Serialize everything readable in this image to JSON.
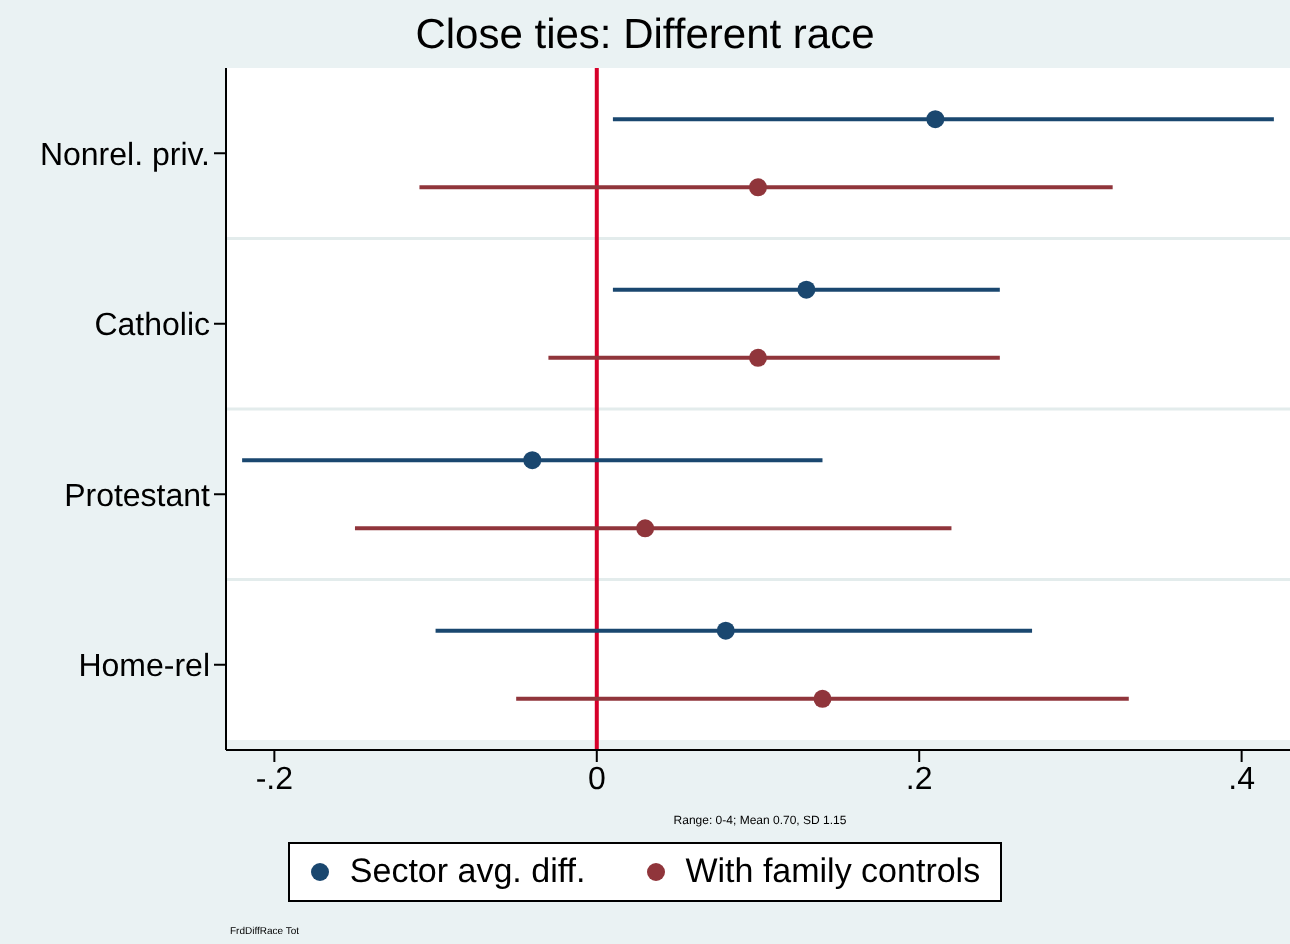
{
  "chart_data": {
    "type": "scatter",
    "title": "Close ties: Different race",
    "orientation": "horizontal",
    "categories": [
      "Nonrel. priv.",
      "Catholic",
      "Protestant",
      "Home-rel"
    ],
    "series": [
      {
        "name": "Sector avg. diff.",
        "color": "#1a476f",
        "values": [
          0.21,
          0.13,
          -0.04,
          0.08
        ],
        "errors": [
          [
            0.01,
            0.42
          ],
          [
            0.01,
            0.25
          ],
          [
            -0.22,
            0.14
          ],
          [
            -0.1,
            0.27
          ]
        ]
      },
      {
        "name": "With family controls",
        "color": "#90353b",
        "values": [
          0.1,
          0.1,
          0.03,
          0.14
        ],
        "errors": [
          [
            -0.11,
            0.32
          ],
          [
            -0.03,
            0.25
          ],
          [
            -0.15,
            0.22
          ],
          [
            -0.05,
            0.33
          ]
        ]
      }
    ],
    "xlim": [
      -0.23,
      0.43
    ],
    "xticks": [
      {
        "value": -0.2,
        "label": "-.2"
      },
      0,
      {
        "value": 0.2,
        "label": ".2"
      },
      {
        "value": 0.4,
        "label": ".4"
      }
    ],
    "ref_lines": [
      {
        "axis": "x",
        "value": 0,
        "color": "#d6002a"
      }
    ],
    "grid": "y",
    "legend": "bottom",
    "marker": "circle",
    "annotations": [
      "Range: 0-4; Mean 0.70, SD 1.15",
      "FrdDiffRace Tot"
    ]
  }
}
